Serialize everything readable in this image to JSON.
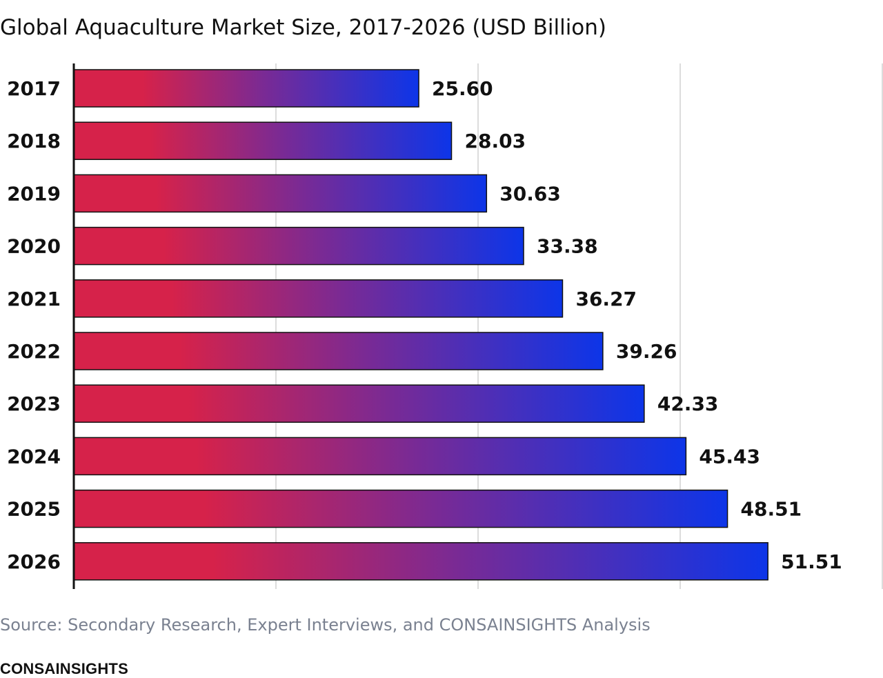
{
  "title": "Global Aquaculture Market Size, 2017-2026 (USD Billion)",
  "source": "Source: Secondary Research, Expert Interviews, and CONSAINSIGHTS Analysis",
  "brand": "CONSAINSIGHTS",
  "colors": {
    "bar_start": "#d6224a",
    "bar_mid": "#7a2a94",
    "bar_end": "#0d35e8",
    "gridline": "#d0d0d0",
    "axis": "#111111"
  },
  "chart_data": {
    "type": "bar",
    "orientation": "horizontal",
    "categories": [
      "2017",
      "2018",
      "2019",
      "2020",
      "2021",
      "2022",
      "2023",
      "2024",
      "2025",
      "2026"
    ],
    "values": [
      25.6,
      28.03,
      30.63,
      33.38,
      36.27,
      39.26,
      42.33,
      45.43,
      48.51,
      51.51
    ],
    "value_labels": [
      "25.60",
      "28.03",
      "30.63",
      "33.38",
      "36.27",
      "39.26",
      "42.33",
      "45.43",
      "48.51",
      "51.51"
    ],
    "title": "Global Aquaculture Market Size, 2017-2026 (USD Billion)",
    "xlabel": "",
    "ylabel": "",
    "xlim": [
      0,
      60
    ],
    "gridlines_x": [
      15,
      30,
      45,
      60
    ],
    "grid": true,
    "legend": "none"
  }
}
